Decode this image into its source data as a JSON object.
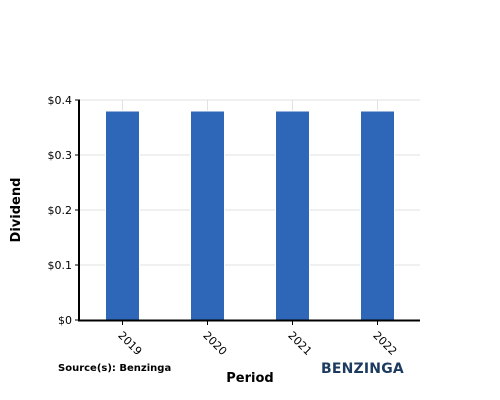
{
  "chart_data": {
    "type": "bar",
    "categories": [
      "2019",
      "2020",
      "2021",
      "2022"
    ],
    "values": [
      0.38,
      0.38,
      0.38,
      0.38
    ],
    "xlabel": "Period",
    "ylabel": "Dividend",
    "ylim": [
      0,
      0.4
    ],
    "yticks": [
      "$0",
      "$0.1",
      "$0.2",
      "$0.3",
      "$0.4"
    ],
    "ytick_values": [
      0,
      0.1,
      0.2,
      0.3,
      0.4
    ],
    "bar_color": "#2f67b8",
    "grid": true
  },
  "footer": {
    "source": "Source(s): Benzinga",
    "brand": "BENZINGA"
  }
}
